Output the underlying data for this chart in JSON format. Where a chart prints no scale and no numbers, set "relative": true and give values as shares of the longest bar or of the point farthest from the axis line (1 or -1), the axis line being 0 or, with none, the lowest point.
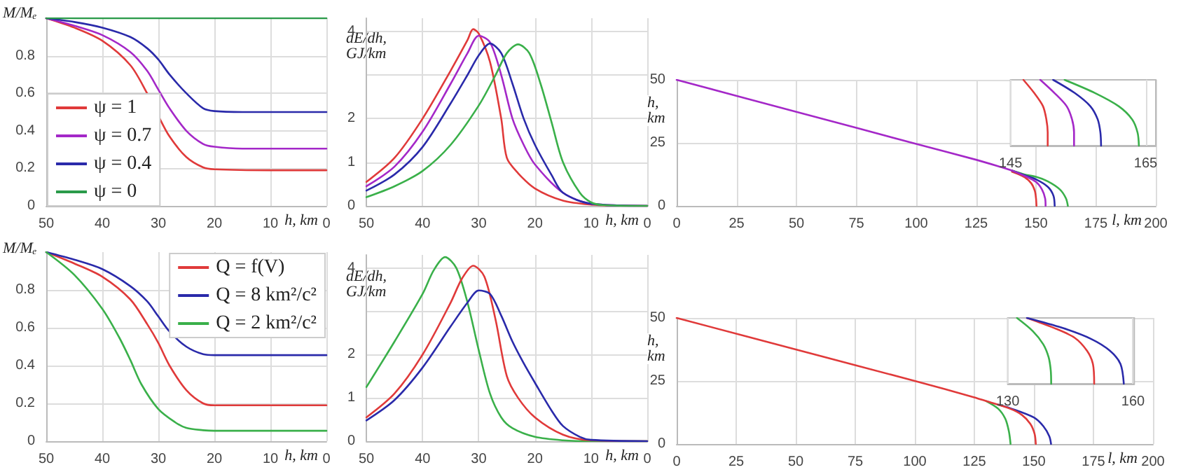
{
  "chart_data": [
    {
      "type": "line",
      "xlabel": "h, km",
      "ylabel": "M/Mₑ",
      "xlim": [
        50,
        0
      ],
      "xticks": [
        50,
        40,
        30,
        20,
        10,
        0
      ],
      "ylim": [
        0,
        1
      ],
      "yticks": [
        0,
        0.2,
        0.4,
        0.6,
        0.8
      ],
      "grid": true,
      "legend": "bottom left",
      "series": [
        {
          "name": "ψ = 1",
          "color": "#e03a3a",
          "x": [
            50,
            45,
            40,
            35,
            32,
            30,
            28,
            25,
            22,
            20,
            10,
            0
          ],
          "values": [
            1,
            0.95,
            0.88,
            0.75,
            0.6,
            0.48,
            0.37,
            0.26,
            0.205,
            0.195,
            0.19,
            0.19
          ]
        },
        {
          "name": "ψ = 0.7",
          "color": "#a428c8",
          "x": [
            50,
            45,
            40,
            35,
            32,
            30,
            28,
            25,
            22,
            20,
            15,
            0
          ],
          "values": [
            1,
            0.96,
            0.91,
            0.82,
            0.72,
            0.62,
            0.52,
            0.4,
            0.33,
            0.315,
            0.305,
            0.305
          ]
        },
        {
          "name": "ψ = 0.4",
          "color": "#2a2aaa",
          "x": [
            50,
            45,
            40,
            35,
            32,
            30,
            28,
            25,
            22,
            20,
            15,
            0
          ],
          "values": [
            1,
            0.98,
            0.95,
            0.9,
            0.84,
            0.78,
            0.7,
            0.6,
            0.52,
            0.505,
            0.5,
            0.5
          ]
        },
        {
          "name": "ψ = 0",
          "color": "#2a9a4a",
          "x": [
            50,
            0
          ],
          "values": [
            1,
            1
          ]
        }
      ]
    },
    {
      "type": "line",
      "xlabel": "h, km",
      "ylabel": "dE/dh, GJ/km",
      "xlim": [
        50,
        0
      ],
      "xticks": [
        50,
        40,
        30,
        20,
        10,
        0
      ],
      "ylim": [
        0,
        4.3
      ],
      "yticks": [
        0,
        1,
        2,
        {
          "value": 3,
          "label": null
        },
        4
      ],
      "grid": true,
      "series": [
        {
          "color": "#e03a3a",
          "x": [
            50,
            45,
            40,
            35,
            32,
            31,
            30,
            28,
            26,
            25,
            23,
            20,
            15,
            10,
            5,
            0
          ],
          "values": [
            0.55,
            1.1,
            2.0,
            3.1,
            3.8,
            4.05,
            3.95,
            3.3,
            2.0,
            1.1,
            0.75,
            0.4,
            0.12,
            0.03,
            0.01,
            0
          ]
        },
        {
          "color": "#a428c8",
          "x": [
            50,
            45,
            40,
            35,
            32,
            30,
            28,
            26,
            24,
            22,
            20,
            15,
            10,
            0
          ],
          "values": [
            0.45,
            0.9,
            1.7,
            2.8,
            3.5,
            3.9,
            3.75,
            3.0,
            2.0,
            1.4,
            0.95,
            0.3,
            0.05,
            0
          ]
        },
        {
          "color": "#2a2aaa",
          "x": [
            50,
            45,
            40,
            35,
            32,
            30,
            28,
            26,
            24,
            22,
            20,
            17,
            15,
            10,
            0
          ],
          "values": [
            0.35,
            0.72,
            1.35,
            2.35,
            3.0,
            3.45,
            3.72,
            3.5,
            2.8,
            2.0,
            1.4,
            0.7,
            0.3,
            0.05,
            0
          ]
        },
        {
          "color": "#3ab04a",
          "x": [
            50,
            45,
            40,
            35,
            30,
            27,
            25,
            23,
            21,
            19,
            17,
            15,
            12,
            10,
            8,
            0
          ],
          "values": [
            0.2,
            0.45,
            0.8,
            1.4,
            2.3,
            3.0,
            3.5,
            3.7,
            3.5,
            2.8,
            1.9,
            1.0,
            0.3,
            0.08,
            0.02,
            0
          ]
        }
      ]
    },
    {
      "type": "line",
      "xlabel": "l, km",
      "ylabel": "h, km",
      "xlim": [
        0,
        200
      ],
      "xticks": [
        0,
        25,
        50,
        75,
        100,
        125,
        150,
        175,
        200
      ],
      "ylim": [
        0,
        50
      ],
      "yticks": [
        0,
        25,
        50
      ],
      "grid": true,
      "series": [
        {
          "color": "#e03a3a",
          "x": [
            140,
            145,
            148,
            149.5,
            150,
            150.2
          ],
          "values": [
            13.5,
            11.5,
            9,
            6,
            3,
            0
          ]
        },
        {
          "color": "#3ab04a",
          "x": [
            140,
            145,
            150,
            155,
            160,
            162.5,
            163.3
          ],
          "values": [
            14,
            12.5,
            11.5,
            9.7,
            6.5,
            3,
            0
          ]
        },
        {
          "color": "#2a2aaa",
          "x": [
            140,
            145,
            150,
            155,
            157.3,
            157.8
          ],
          "values": [
            14,
            12.2,
            10.5,
            7.5,
            4,
            0
          ]
        },
        {
          "color": "#a428c8",
          "x": [
            0,
            50,
            100,
            125,
            135,
            140,
            145,
            150,
            152.5,
            153.8,
            154
          ],
          "values": [
            50,
            37.3,
            24.6,
            18.3,
            15.5,
            14,
            12,
            9.5,
            6.5,
            3,
            0
          ]
        }
      ]
    },
    {
      "type": "line",
      "xlim": [
        145,
        166.5
      ],
      "xticks": [
        145,
        165
      ],
      "relative": true,
      "grid": "x",
      "series": [
        {
          "color": "#e03a3a",
          "x": [
            146.9,
            148.5,
            149.8,
            150.3,
            150.5,
            150.5
          ],
          "values": [
            1,
            0.8,
            0.6,
            0.4,
            0.2,
            0
          ]
        },
        {
          "color": "#a428c8",
          "x": [
            149.4,
            151.5,
            153.3,
            154.1,
            154.4,
            154.4
          ],
          "values": [
            1,
            0.8,
            0.6,
            0.4,
            0.2,
            0
          ]
        },
        {
          "color": "#2a2aaa",
          "x": [
            151.3,
            154.5,
            156.8,
            157.9,
            158.3,
            158.4
          ],
          "values": [
            1,
            0.8,
            0.6,
            0.4,
            0.2,
            0
          ]
        },
        {
          "color": "#3ab04a",
          "x": [
            153,
            157.5,
            161,
            163,
            163.8,
            164
          ],
          "values": [
            1,
            0.8,
            0.6,
            0.4,
            0.2,
            0
          ]
        }
      ]
    },
    {
      "type": "line",
      "xlabel": "h, km",
      "ylabel": "M/Mₑ",
      "xlim": [
        50,
        0
      ],
      "xticks": [
        50,
        40,
        30,
        20,
        10,
        0
      ],
      "ylim": [
        0,
        1
      ],
      "yticks": [
        0,
        0.2,
        0.4,
        0.6,
        0.8
      ],
      "grid": true,
      "legend": "top right",
      "series": [
        {
          "name": "Q = f(V)",
          "color": "#e03a3a",
          "x": [
            50,
            45,
            40,
            35,
            32,
            30,
            28,
            25,
            22,
            20,
            0
          ],
          "values": [
            1,
            0.94,
            0.87,
            0.75,
            0.62,
            0.52,
            0.4,
            0.27,
            0.2,
            0.19,
            0.19
          ]
        },
        {
          "name": "Q = 8 km²/c²",
          "color": "#2a2aaa",
          "x": [
            50,
            45,
            40,
            35,
            32,
            30,
            28,
            25,
            22,
            20,
            0
          ],
          "values": [
            1,
            0.96,
            0.91,
            0.82,
            0.74,
            0.66,
            0.58,
            0.5,
            0.46,
            0.455,
            0.455
          ]
        },
        {
          "name": "Q = 2 km²/c²",
          "color": "#3ab04a",
          "x": [
            50,
            45,
            40,
            37,
            35,
            33,
            30,
            27,
            25,
            22,
            20,
            0
          ],
          "values": [
            1,
            0.88,
            0.7,
            0.55,
            0.43,
            0.3,
            0.17,
            0.1,
            0.07,
            0.058,
            0.055,
            0.055
          ]
        }
      ]
    },
    {
      "type": "line",
      "xlabel": "h, km",
      "ylabel": "dE/dh, GJ/km",
      "xlim": [
        50,
        0
      ],
      "xticks": [
        50,
        40,
        30,
        20,
        10,
        0
      ],
      "ylim": [
        0,
        4.3
      ],
      "yticks": [
        0,
        1,
        2,
        {
          "value": 3,
          "label": null
        },
        4
      ],
      "grid": true,
      "series": [
        {
          "color": "#3ab04a",
          "x": [
            50,
            45,
            40,
            38,
            36,
            34,
            32,
            30,
            28,
            26,
            24,
            20,
            15,
            10,
            0
          ],
          "values": [
            1.25,
            2.3,
            3.4,
            3.95,
            4.25,
            4.0,
            3.2,
            2.1,
            1.1,
            0.55,
            0.3,
            0.1,
            0.02,
            0,
            0
          ]
        },
        {
          "color": "#e03a3a",
          "x": [
            50,
            45,
            40,
            35,
            33,
            31,
            29,
            27,
            25,
            23,
            20,
            15,
            10,
            0
          ],
          "values": [
            0.55,
            1.1,
            2.0,
            3.2,
            3.75,
            4.05,
            3.8,
            2.8,
            1.5,
            1.0,
            0.55,
            0.15,
            0.02,
            0
          ]
        },
        {
          "color": "#2a2aaa",
          "x": [
            50,
            45,
            40,
            35,
            32,
            30,
            28,
            26,
            24,
            22,
            20,
            17,
            15,
            12,
            10,
            0
          ],
          "values": [
            0.48,
            0.95,
            1.7,
            2.65,
            3.2,
            3.48,
            3.4,
            2.9,
            2.3,
            1.8,
            1.35,
            0.7,
            0.35,
            0.1,
            0.03,
            0
          ]
        }
      ]
    },
    {
      "type": "line",
      "xlabel": "l, km",
      "ylabel": "h, km",
      "xlim": [
        0,
        200
      ],
      "xticks": [
        0,
        25,
        50,
        75,
        100,
        125,
        150,
        175,
        200
      ],
      "ylim": [
        0,
        50
      ],
      "yticks": [
        0,
        25,
        50
      ],
      "grid": true,
      "series": [
        {
          "color": "#3ab04a",
          "x": [
            130,
            135,
            138,
            139.5,
            140.2
          ],
          "values": [
            17,
            14,
            10,
            5,
            0
          ]
        },
        {
          "color": "#2a2aaa",
          "x": [
            135,
            140,
            150,
            154,
            156.5,
            157.2
          ],
          "values": [
            15.6,
            14.2,
            10.5,
            7,
            3,
            0
          ]
        },
        {
          "color": "#e03a3a",
          "x": [
            0,
            50,
            100,
            125,
            130,
            140,
            145,
            148.5,
            150.3,
            150.8
          ],
          "values": [
            50,
            37.5,
            25,
            18.5,
            17,
            14,
            11.5,
            8,
            4,
            0
          ]
        }
      ]
    },
    {
      "type": "line",
      "xlim": [
        130,
        160.3
      ],
      "xticks": [
        130,
        160
      ],
      "relative": true,
      "grid": "x",
      "series": [
        {
          "color": "#3ab04a",
          "x": [
            132.2,
            136,
            138.5,
            139.8,
            140.3,
            140.4
          ],
          "values": [
            1,
            0.8,
            0.6,
            0.4,
            0.2,
            0
          ]
        },
        {
          "color": "#e03a3a",
          "x": [
            134.6,
            141,
            146,
            149,
            150.4,
            150.7
          ],
          "values": [
            1,
            0.85,
            0.7,
            0.5,
            0.3,
            0
          ]
        },
        {
          "color": "#2a2aaa",
          "x": [
            134.6,
            143,
            150,
            154.5,
            157,
            157.8
          ],
          "values": [
            1,
            0.85,
            0.68,
            0.5,
            0.3,
            0
          ]
        }
      ]
    }
  ]
}
